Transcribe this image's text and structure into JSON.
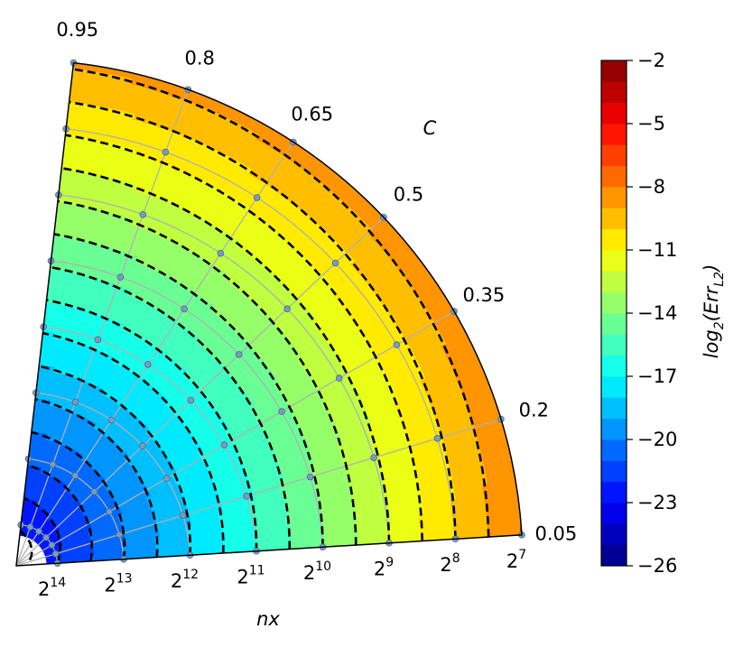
{
  "chart_data": {
    "type": "polar-contour",
    "title": "",
    "theta_label": "C",
    "r_label": "nx",
    "colorbar_label_main": "log",
    "colorbar_label_sub": "2",
    "colorbar_label_arg": "(Err",
    "colorbar_label_arg_sub": "L2",
    "colorbar_label_close": ")",
    "theta_ticks": [
      "0.05",
      "0.2",
      "0.35",
      "0.5",
      "0.65",
      "0.8",
      "0.95"
    ],
    "theta_tick_values": [
      0.05,
      0.2,
      0.35,
      0.5,
      0.65,
      0.8,
      0.95
    ],
    "theta_range": [
      0.05,
      0.95
    ],
    "r_tick_base": "2",
    "r_tick_exponents": [
      "14",
      "13",
      "12",
      "11",
      "10",
      "9",
      "8",
      "7"
    ],
    "r_tick_values": [
      14,
      13,
      12,
      11,
      10,
      9,
      8,
      7
    ],
    "r_scale": "log2, reversed (2^7 at outer edge, 2^14 near center)",
    "colorbar_ticks": [
      "−2",
      "−5",
      "−8",
      "−11",
      "−14",
      "−17",
      "−20",
      "−23",
      "−26"
    ],
    "colorbar_tick_values": [
      -2,
      -5,
      -8,
      -11,
      -14,
      -17,
      -20,
      -23,
      -26
    ],
    "colorbar_range": [
      -26,
      -2
    ],
    "colormap": "jet",
    "contour_step": 1,
    "grid": true,
    "data_points": "nx = 2^7 … 2^14 (8 values) × C = 0.05 … 0.95 (7 values)",
    "approx_values_log2_err": {
      "nx_2^7": -8,
      "nx_2^8": -10,
      "nx_2^9": -12,
      "nx_2^10": -14,
      "nx_2^11": -16,
      "nx_2^12": -18,
      "nx_2^13": -20,
      "nx_2^14": -22,
      "dependence_on_C": "error decreases slightly as C increases from 0.05 to 0.95"
    }
  }
}
